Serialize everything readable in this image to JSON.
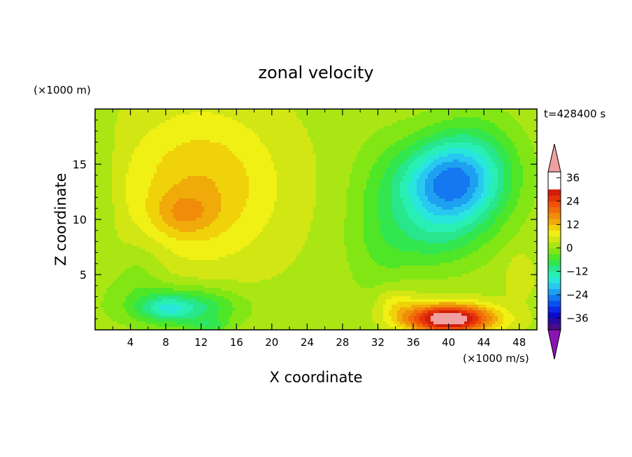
{
  "chart_data": {
    "type": "heatmap",
    "title": "zonal velocity",
    "xlabel": "X coordinate",
    "ylabel": "Z coordinate",
    "x_unit_label": "(×1000 m/s)",
    "y_unit_label": "(×1000 m)",
    "time_label": "t=428400 s",
    "xlim": [
      0,
      50
    ],
    "ylim": [
      0,
      20
    ],
    "x_ticks": [
      4,
      8,
      12,
      16,
      20,
      24,
      28,
      32,
      36,
      40,
      44,
      48
    ],
    "y_ticks": [
      5,
      10,
      15
    ],
    "colorbar": {
      "levels": [
        -42,
        -39,
        -36,
        -33,
        -30,
        -27,
        -24,
        -21,
        -18,
        -15,
        -12,
        -9,
        -6,
        -3,
        0,
        3,
        6,
        9,
        12,
        15,
        18,
        21,
        24,
        27,
        30,
        33,
        36,
        39
      ],
      "colors": [
        "#4a0a8c",
        "#2a0aa0",
        "#0a0ac8",
        "#0a28e6",
        "#0a50f0",
        "#1478f0",
        "#1ea0f0",
        "#28c8f0",
        "#28e6dc",
        "#28f0b4",
        "#28e68c",
        "#32e650",
        "#50e628",
        "#82e614",
        "#aae614",
        "#d2e614",
        "#f0f014",
        "#f0d20a",
        "#f0aa0a",
        "#f08c0a",
        "#f06e0a",
        "#f0500a",
        "#e6320a",
        "#d21e0a"
      ],
      "tick_labels": [
        "36",
        "24",
        "12",
        "0",
        "−12",
        "−24",
        "−36"
      ],
      "tick_values": [
        36,
        24,
        12,
        0,
        -12,
        -24,
        -36
      ],
      "over_color": "#f0a0a0",
      "under_color": "#8c14b4"
    },
    "field_blobs": [
      {
        "x": 12,
        "z": 13,
        "sx": 9,
        "sz": 7,
        "amp": 10
      },
      {
        "x": 10,
        "z": 10.5,
        "sx": 3.5,
        "sz": 2,
        "amp": 6
      },
      {
        "x": 5,
        "z": 5,
        "sx": 3,
        "sz": 3,
        "amp": -4
      },
      {
        "x": 10,
        "z": 2,
        "sx": 6,
        "sz": 1.8,
        "amp": -14
      },
      {
        "x": 8,
        "z": 2,
        "sx": 2.5,
        "sz": 0.9,
        "amp": -6
      },
      {
        "x": 13,
        "z": 0.4,
        "sx": 2,
        "sz": 0.6,
        "amp": -6
      },
      {
        "x": 40,
        "z": 13,
        "sx": 6,
        "sz": 4,
        "amp": -26
      },
      {
        "x": 43,
        "z": 16,
        "sx": 5,
        "sz": 4,
        "amp": -6
      },
      {
        "x": 38,
        "z": 8,
        "sx": 6,
        "sz": 3,
        "amp": -6
      },
      {
        "x": 32,
        "z": 9,
        "sx": 4,
        "sz": 8,
        "amp": -4
      },
      {
        "x": 40,
        "z": 1,
        "sx": 5,
        "sz": 1.3,
        "amp": 34
      },
      {
        "x": 34,
        "z": 2.5,
        "sx": 2.5,
        "sz": 1.5,
        "amp": 6
      },
      {
        "x": 1,
        "z": 12,
        "sx": 1.5,
        "sz": 8,
        "amp": -3
      },
      {
        "x": 48,
        "z": 5,
        "sx": 1.5,
        "sz": 2,
        "amp": 4
      }
    ]
  }
}
